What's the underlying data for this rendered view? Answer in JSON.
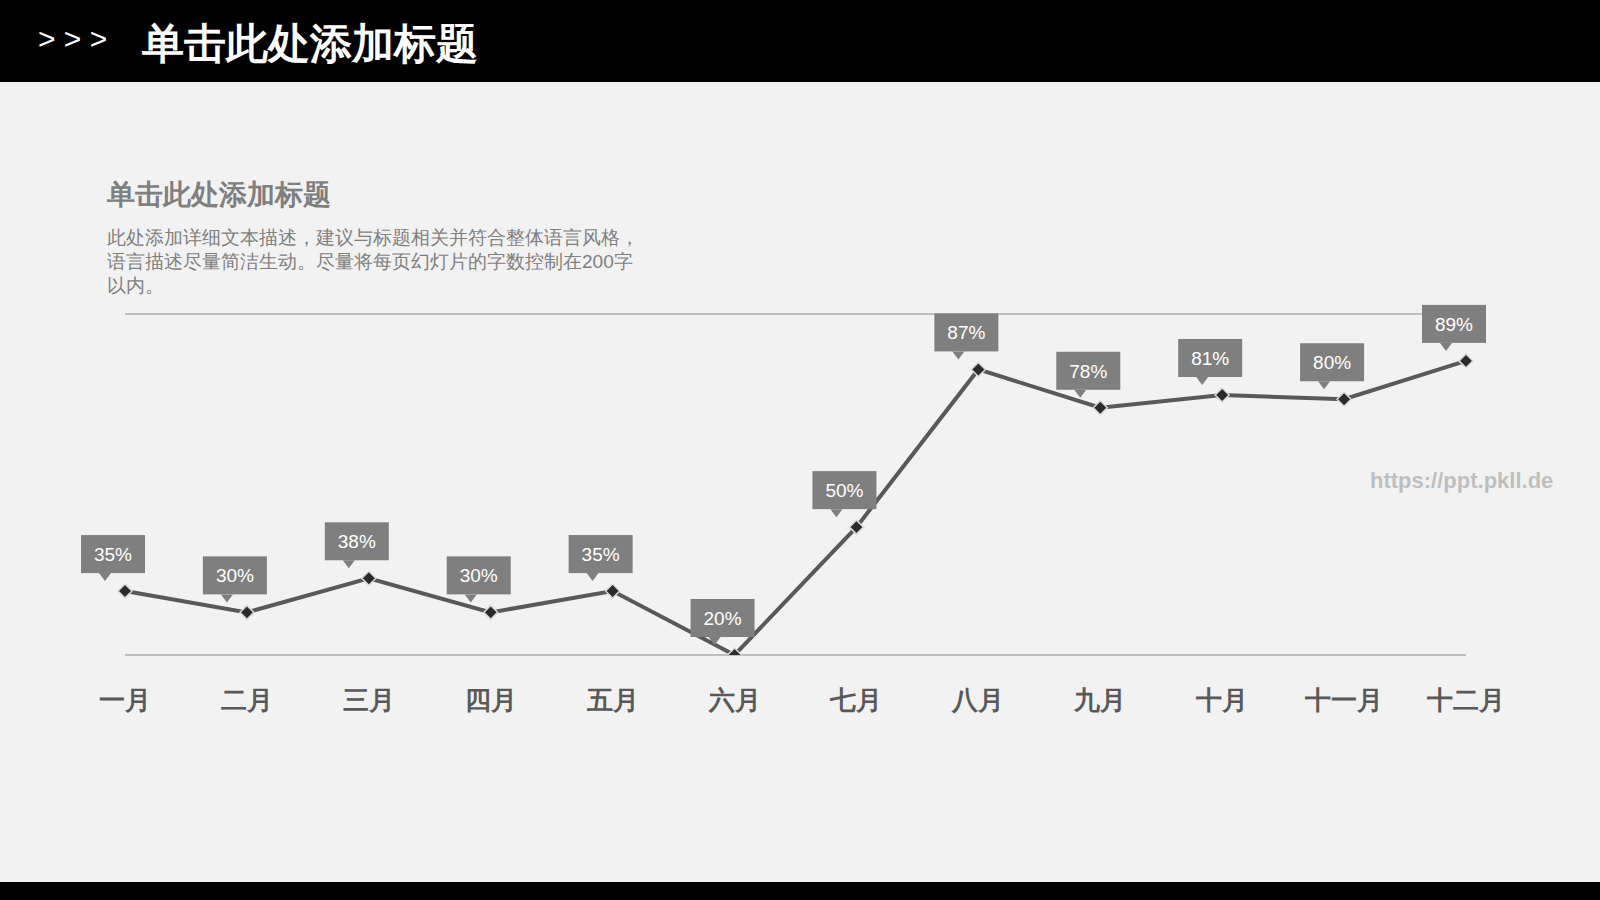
{
  "header": {
    "prefix": "> > >",
    "title": "单击此处添加标题"
  },
  "subtitle": "单击此处添加标题",
  "description": [
    "此处添加详细文本描述，建议与标题相关并符合整体语言风格，",
    "语言描述尽量简洁生动。尽量将每页幻灯片的字数控制在200字",
    "以内。"
  ],
  "watermark": "https://ppt.pkll.de",
  "chart_data": {
    "type": "line",
    "categories": [
      "一月",
      "二月",
      "三月",
      "四月",
      "五月",
      "六月",
      "七月",
      "八月",
      "九月",
      "十月",
      "十一月",
      "十二月"
    ],
    "values": [
      35,
      30,
      38,
      30,
      35,
      20,
      50,
      87,
      78,
      81,
      80,
      89
    ],
    "value_labels": [
      "35%",
      "30%",
      "38%",
      "30%",
      "35%",
      "20%",
      "50%",
      "87%",
      "78%",
      "81%",
      "80%",
      "89%"
    ],
    "color": "#595959",
    "marker": "diamond",
    "ylim": [
      20,
      100
    ],
    "yticks": [
      20,
      36,
      52,
      68,
      84,
      100
    ],
    "grid": true,
    "tick_labels": "x",
    "data_labels": true
  }
}
